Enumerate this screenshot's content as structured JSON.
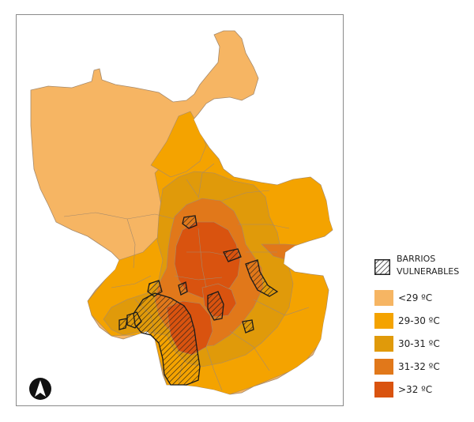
{
  "legend": {
    "hatch_title_line1": "BARRIOS",
    "hatch_title_line2": "VULNERABLES",
    "items": [
      {
        "label": "<29 ºC",
        "color": "#f6b563"
      },
      {
        "label": "29-30 ºC",
        "color": "#f4a300"
      },
      {
        "label": "30-31 ºC",
        "color": "#e09a0a"
      },
      {
        "label": "31-32 ºC",
        "color": "#e1781a"
      },
      {
        "label": ">32 ºC",
        "color": "#d9530f"
      }
    ]
  },
  "colors": {
    "frame_border": "#8a8a8a",
    "boundary_lines": "#9b8b7a",
    "hatch_stroke": "#1a1a1a",
    "north_arrow": "#111111"
  },
  "icons": {
    "north_arrow": "north-arrow-icon"
  }
}
